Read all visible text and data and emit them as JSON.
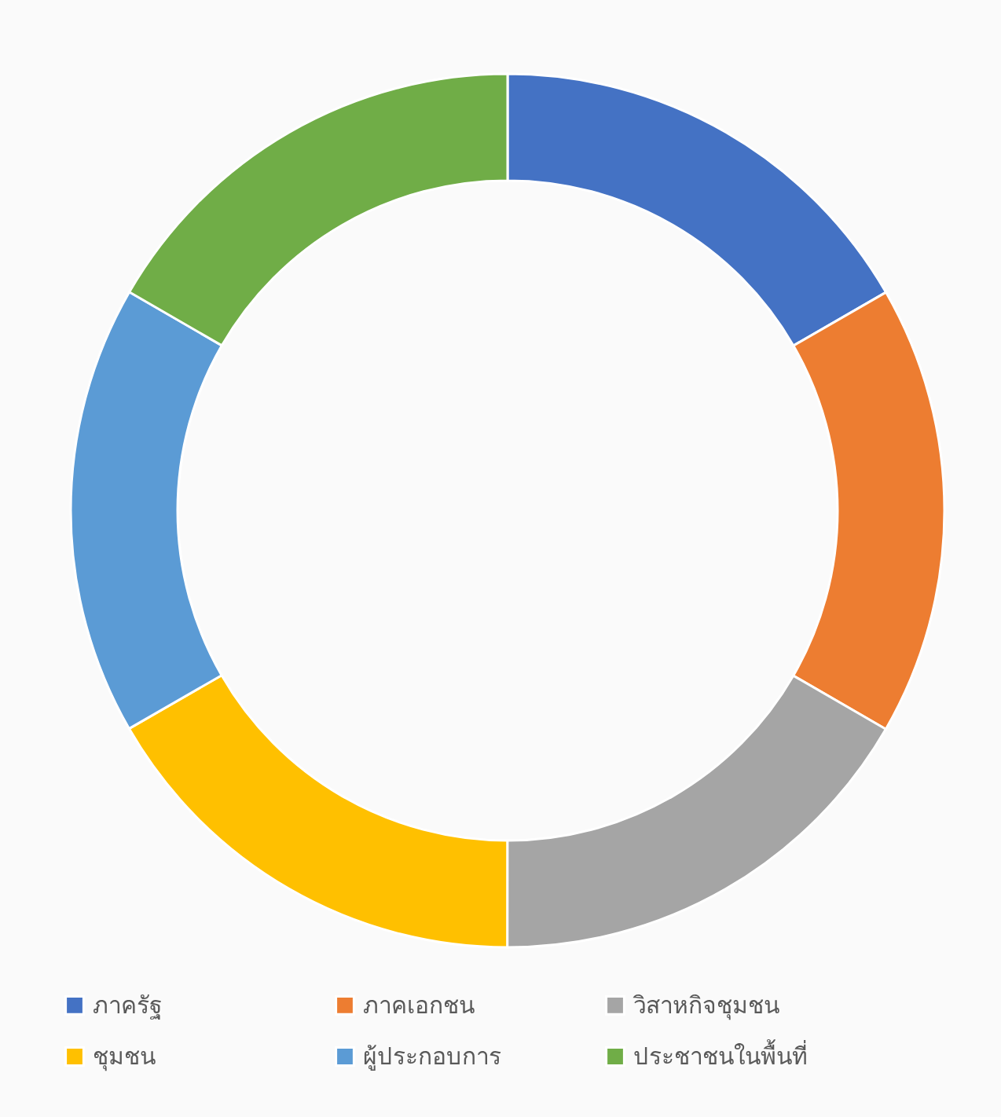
{
  "chart_data": {
    "type": "donut",
    "categories": [
      "ภาครัฐ",
      "ภาคเอกชน",
      "วิสาหกิจชุมชน",
      "ชุมชน",
      "ผู้ประกอบการ",
      "ประชาชนในพื้นที่"
    ],
    "values": [
      16.67,
      16.67,
      16.67,
      16.67,
      16.66,
      16.66
    ],
    "colors": [
      "#4472c4",
      "#ed7d31",
      "#a5a5a5",
      "#ffc000",
      "#5b9bd5",
      "#70ad47"
    ],
    "legend": "bottom"
  }
}
